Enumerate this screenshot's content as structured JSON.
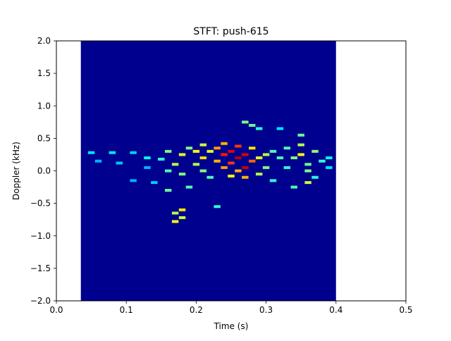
{
  "chart_data": {
    "type": "heatmap",
    "title": "STFT: push-615",
    "xlabel": "Time (s)",
    "ylabel": "Doppler (kHz)",
    "xlim": [
      0,
      0.5
    ],
    "ylim": [
      -2.0,
      2.0
    ],
    "x_ticks": [
      "0.0",
      "0.1",
      "0.2",
      "0.3",
      "0.4",
      "0.5"
    ],
    "y_ticks": [
      "2.0",
      "1.5",
      "1.0",
      "0.5",
      "0.0",
      "−0.5",
      "−1.0",
      "−1.5",
      "−2.0"
    ],
    "colormap": "jet",
    "background_color": "#00008f",
    "data_extent_time": [
      0.035,
      0.4
    ],
    "grid": false,
    "intensity_cells": [
      {
        "t": 0.05,
        "f": 0.28,
        "v": 0.35
      },
      {
        "t": 0.06,
        "f": 0.15,
        "v": 0.3
      },
      {
        "t": 0.08,
        "f": 0.28,
        "v": 0.35
      },
      {
        "t": 0.09,
        "f": 0.12,
        "v": 0.32
      },
      {
        "t": 0.11,
        "f": 0.28,
        "v": 0.33
      },
      {
        "t": 0.11,
        "f": -0.15,
        "v": 0.3
      },
      {
        "t": 0.13,
        "f": 0.2,
        "v": 0.38
      },
      {
        "t": 0.13,
        "f": 0.05,
        "v": 0.3
      },
      {
        "t": 0.14,
        "f": -0.18,
        "v": 0.33
      },
      {
        "t": 0.15,
        "f": 0.18,
        "v": 0.42
      },
      {
        "t": 0.16,
        "f": 0.3,
        "v": 0.5
      },
      {
        "t": 0.16,
        "f": 0.0,
        "v": 0.45
      },
      {
        "t": 0.16,
        "f": -0.3,
        "v": 0.48
      },
      {
        "t": 0.17,
        "f": -0.65,
        "v": 0.55
      },
      {
        "t": 0.17,
        "f": -0.78,
        "v": 0.62
      },
      {
        "t": 0.17,
        "f": 0.1,
        "v": 0.55
      },
      {
        "t": 0.18,
        "f": -0.6,
        "v": 0.65
      },
      {
        "t": 0.18,
        "f": -0.72,
        "v": 0.58
      },
      {
        "t": 0.18,
        "f": 0.25,
        "v": 0.6
      },
      {
        "t": 0.18,
        "f": -0.05,
        "v": 0.5
      },
      {
        "t": 0.19,
        "f": 0.35,
        "v": 0.5
      },
      {
        "t": 0.19,
        "f": -0.25,
        "v": 0.45
      },
      {
        "t": 0.2,
        "f": 0.3,
        "v": 0.62
      },
      {
        "t": 0.2,
        "f": 0.1,
        "v": 0.55
      },
      {
        "t": 0.21,
        "f": 0.4,
        "v": 0.58
      },
      {
        "t": 0.21,
        "f": 0.2,
        "v": 0.66
      },
      {
        "t": 0.21,
        "f": 0.0,
        "v": 0.5
      },
      {
        "t": 0.22,
        "f": 0.3,
        "v": 0.6
      },
      {
        "t": 0.22,
        "f": -0.1,
        "v": 0.45
      },
      {
        "t": 0.23,
        "f": 0.35,
        "v": 0.72
      },
      {
        "t": 0.23,
        "f": 0.15,
        "v": 0.7
      },
      {
        "t": 0.23,
        "f": -0.55,
        "v": 0.42
      },
      {
        "t": 0.24,
        "f": 0.42,
        "v": 0.7
      },
      {
        "t": 0.24,
        "f": 0.25,
        "v": 0.85
      },
      {
        "t": 0.24,
        "f": 0.05,
        "v": 0.72
      },
      {
        "t": 0.25,
        "f": 0.3,
        "v": 0.9
      },
      {
        "t": 0.25,
        "f": 0.12,
        "v": 0.82
      },
      {
        "t": 0.25,
        "f": -0.08,
        "v": 0.62
      },
      {
        "t": 0.26,
        "f": 0.38,
        "v": 0.82
      },
      {
        "t": 0.26,
        "f": 0.2,
        "v": 0.95
      },
      {
        "t": 0.26,
        "f": 0.0,
        "v": 0.7
      },
      {
        "t": 0.27,
        "f": 0.25,
        "v": 0.9
      },
      {
        "t": 0.27,
        "f": 0.05,
        "v": 0.92
      },
      {
        "t": 0.27,
        "f": -0.1,
        "v": 0.7
      },
      {
        "t": 0.27,
        "f": 0.75,
        "v": 0.5
      },
      {
        "t": 0.28,
        "f": 0.15,
        "v": 0.78
      },
      {
        "t": 0.28,
        "f": 0.35,
        "v": 0.65
      },
      {
        "t": 0.28,
        "f": 0.7,
        "v": 0.48
      },
      {
        "t": 0.29,
        "f": 0.2,
        "v": 0.6
      },
      {
        "t": 0.29,
        "f": -0.05,
        "v": 0.55
      },
      {
        "t": 0.29,
        "f": 0.65,
        "v": 0.42
      },
      {
        "t": 0.3,
        "f": 0.25,
        "v": 0.55
      },
      {
        "t": 0.3,
        "f": 0.05,
        "v": 0.5
      },
      {
        "t": 0.31,
        "f": 0.3,
        "v": 0.45
      },
      {
        "t": 0.31,
        "f": -0.15,
        "v": 0.42
      },
      {
        "t": 0.32,
        "f": 0.2,
        "v": 0.45
      },
      {
        "t": 0.32,
        "f": 0.65,
        "v": 0.35
      },
      {
        "t": 0.33,
        "f": 0.35,
        "v": 0.45
      },
      {
        "t": 0.33,
        "f": 0.05,
        "v": 0.42
      },
      {
        "t": 0.34,
        "f": -0.25,
        "v": 0.45
      },
      {
        "t": 0.34,
        "f": 0.2,
        "v": 0.5
      },
      {
        "t": 0.35,
        "f": 0.4,
        "v": 0.55
      },
      {
        "t": 0.35,
        "f": 0.55,
        "v": 0.48
      },
      {
        "t": 0.35,
        "f": 0.25,
        "v": 0.62
      },
      {
        "t": 0.36,
        "f": 0.0,
        "v": 0.5
      },
      {
        "t": 0.36,
        "f": -0.18,
        "v": 0.58
      },
      {
        "t": 0.36,
        "f": 0.1,
        "v": 0.48
      },
      {
        "t": 0.37,
        "f": 0.3,
        "v": 0.52
      },
      {
        "t": 0.37,
        "f": -0.1,
        "v": 0.42
      },
      {
        "t": 0.38,
        "f": 0.15,
        "v": 0.42
      },
      {
        "t": 0.39,
        "f": 0.2,
        "v": 0.38
      },
      {
        "t": 0.39,
        "f": 0.05,
        "v": 0.35
      }
    ]
  }
}
